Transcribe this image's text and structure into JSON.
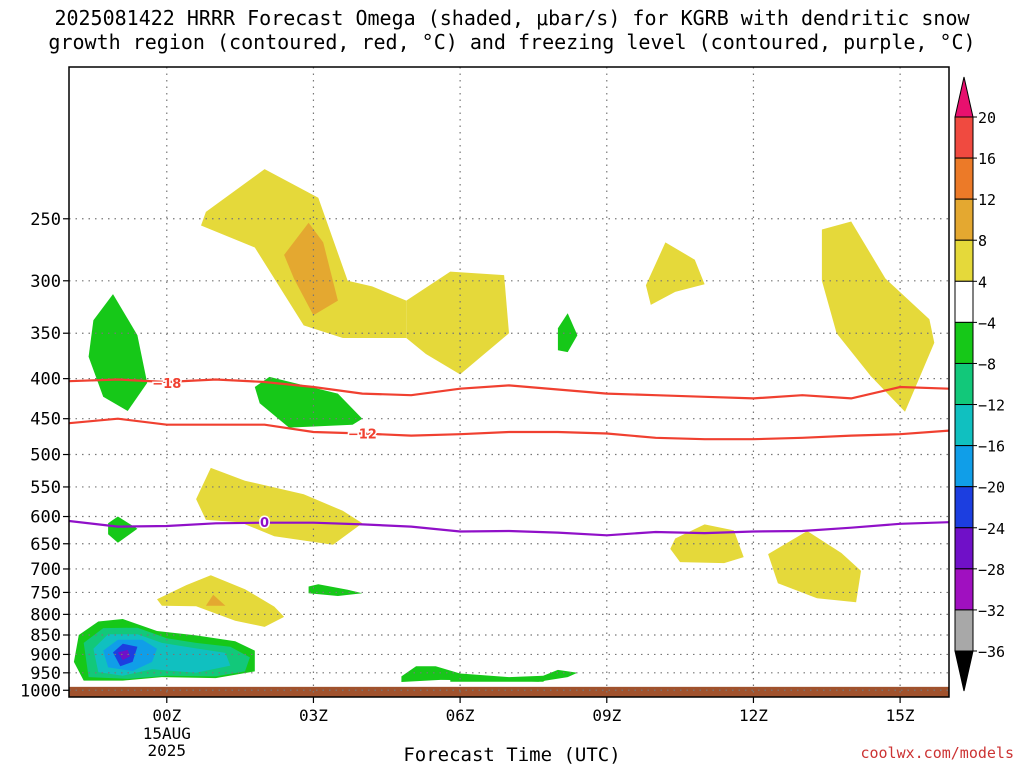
{
  "title": "2025081422 HRRR Forecast Omega (shaded, μbar/s) for KGRB with dendritic snow\ngrowth region (contoured, red, °C) and freezing level (contoured, purple, °C)",
  "credit": "coolwx.com/models",
  "colors": {
    "grid": "#777777",
    "frame": "#000000",
    "red_contour": "#f04030",
    "purple_contour": "#9010c8",
    "ground": "#a0522d"
  },
  "chart_data": {
    "type": "contour",
    "title": "2025081422 HRRR Forecast Omega (shaded, μbar/s) for KGRB with dendritic snow growth region (contoured, red, °C) and freezing level (contoured, purple, °C)",
    "xlabel": "Forecast Time (UTC)",
    "ylabel": "",
    "x_range_hours": [
      -2,
      16
    ],
    "y_range_hpa": [
      1020,
      160
    ],
    "x_ticks": [
      {
        "hour": 0,
        "label": "00Z",
        "sub": [
          "15AUG",
          "2025"
        ]
      },
      {
        "hour": 3,
        "label": "03Z",
        "sub": []
      },
      {
        "hour": 6,
        "label": "06Z",
        "sub": []
      },
      {
        "hour": 9,
        "label": "09Z",
        "sub": []
      },
      {
        "hour": 12,
        "label": "12Z",
        "sub": []
      },
      {
        "hour": 15,
        "label": "15Z",
        "sub": []
      }
    ],
    "y_ticks": [
      250,
      300,
      350,
      400,
      450,
      500,
      550,
      600,
      650,
      700,
      750,
      800,
      850,
      900,
      950,
      1000
    ],
    "grid": true,
    "colorbar": {
      "labels": [
        "20",
        "16",
        "12",
        "8",
        "4",
        "−4",
        "−8",
        "−12",
        "−16",
        "−20",
        "−24",
        "−28",
        "−32",
        "−36"
      ],
      "colors": [
        "#e8106e",
        "#f04a40",
        "#ec7a28",
        "#e4a830",
        "#e5d93a",
        "#ffffff",
        "#16c818",
        "#12c87a",
        "#10c0c0",
        "#109ee8",
        "#1c3ee0",
        "#7010c8",
        "#a010c0",
        "#a8a8a8",
        "#000000"
      ]
    },
    "contour_lines": [
      {
        "name": "-18",
        "color": "#f04030",
        "label": "−18",
        "label_at": [
          0,
          405
        ],
        "points": [
          [
            -2,
            403
          ],
          [
            -1,
            401
          ],
          [
            0,
            404
          ],
          [
            1,
            401
          ],
          [
            2,
            404
          ],
          [
            3,
            410
          ],
          [
            4,
            418
          ],
          [
            5,
            420
          ],
          [
            6,
            412
          ],
          [
            7,
            408
          ],
          [
            8,
            413
          ],
          [
            9,
            418
          ],
          [
            10,
            420
          ],
          [
            11,
            422
          ],
          [
            12,
            424
          ],
          [
            13,
            420
          ],
          [
            14,
            424
          ],
          [
            15,
            410
          ],
          [
            16,
            412
          ]
        ]
      },
      {
        "name": "-12",
        "color": "#f04030",
        "label": "−12",
        "label_at": [
          4,
          470
        ],
        "points": [
          [
            -2,
            456
          ],
          [
            -1,
            450
          ],
          [
            0,
            458
          ],
          [
            1,
            458
          ],
          [
            2,
            458
          ],
          [
            3,
            468
          ],
          [
            4,
            470
          ],
          [
            5,
            473
          ],
          [
            6,
            471
          ],
          [
            7,
            468
          ],
          [
            8,
            468
          ],
          [
            9,
            470
          ],
          [
            10,
            476
          ],
          [
            11,
            478
          ],
          [
            12,
            478
          ],
          [
            13,
            476
          ],
          [
            14,
            473
          ],
          [
            15,
            471
          ],
          [
            16,
            466
          ]
        ]
      },
      {
        "name": "0",
        "color": "#9010c8",
        "label": "0",
        "label_at": [
          2,
          610
        ],
        "points": [
          [
            -2,
            608
          ],
          [
            -1,
            618
          ],
          [
            0,
            617
          ],
          [
            1,
            612
          ],
          [
            2,
            611
          ],
          [
            3,
            611
          ],
          [
            4,
            614
          ],
          [
            5,
            618
          ],
          [
            6,
            627
          ],
          [
            7,
            626
          ],
          [
            8,
            629
          ],
          [
            9,
            634
          ],
          [
            10,
            628
          ],
          [
            11,
            630
          ],
          [
            12,
            627
          ],
          [
            13,
            626
          ],
          [
            14,
            620
          ],
          [
            15,
            613
          ],
          [
            16,
            610
          ]
        ]
      }
    ],
    "omega_regions": [
      {
        "value": 4,
        "color": "#e5d93a",
        "points": [
          [
            0.8,
            245
          ],
          [
            2,
            216
          ],
          [
            3.1,
            235
          ],
          [
            3.7,
            300
          ],
          [
            4.2,
            305
          ],
          [
            4.9,
            318
          ],
          [
            4.9,
            355
          ],
          [
            3.6,
            355
          ],
          [
            2.8,
            342
          ],
          [
            1.8,
            272
          ],
          [
            0.7,
            255
          ]
        ]
      },
      {
        "value": 4,
        "color": "#e5d93a",
        "points": [
          [
            4.9,
            318
          ],
          [
            5.8,
            292
          ],
          [
            6.9,
            295
          ],
          [
            7,
            350
          ],
          [
            6,
            395
          ],
          [
            5.3,
            372
          ],
          [
            4.9,
            355
          ]
        ]
      },
      {
        "value": 8,
        "color": "#e4a830",
        "points": [
          [
            2.4,
            278
          ],
          [
            2.9,
            253
          ],
          [
            3.2,
            268
          ],
          [
            3.5,
            318
          ],
          [
            3,
            332
          ],
          [
            2.6,
            298
          ]
        ]
      },
      {
        "value": 4,
        "color": "#e5d93a",
        "points": [
          [
            9.8,
            304
          ],
          [
            10.2,
            268
          ],
          [
            10.8,
            282
          ],
          [
            11,
            303
          ],
          [
            10.4,
            310
          ],
          [
            9.9,
            322
          ]
        ]
      },
      {
        "value": 4,
        "color": "#e5d93a",
        "points": [
          [
            13.4,
            258
          ],
          [
            14,
            252
          ],
          [
            14.7,
            298
          ],
          [
            15.6,
            336
          ],
          [
            15.7,
            360
          ],
          [
            15.1,
            441
          ],
          [
            14.4,
            397
          ],
          [
            13.7,
            350
          ],
          [
            13.4,
            300
          ]
        ]
      },
      {
        "value": 4,
        "color": "#e5d93a",
        "points": [
          [
            0.6,
            570
          ],
          [
            0.9,
            520
          ],
          [
            1.6,
            540
          ],
          [
            2.8,
            562
          ],
          [
            3.6,
            590
          ],
          [
            4,
            612
          ],
          [
            3.4,
            652
          ],
          [
            2.2,
            636
          ],
          [
            1.5,
            610
          ],
          [
            0.8,
            606
          ]
        ]
      },
      {
        "value": 4,
        "color": "#e5d93a",
        "points": [
          [
            10.4,
            640
          ],
          [
            11,
            614
          ],
          [
            11.6,
            625
          ],
          [
            11.8,
            676
          ],
          [
            11.4,
            688
          ],
          [
            10.5,
            686
          ],
          [
            10.3,
            660
          ]
        ]
      },
      {
        "value": 4,
        "color": "#e5d93a",
        "points": [
          [
            12.3,
            670
          ],
          [
            13.1,
            626
          ],
          [
            13.8,
            668
          ],
          [
            14.2,
            704
          ],
          [
            14.1,
            772
          ],
          [
            13.3,
            763
          ],
          [
            12.5,
            730
          ]
        ]
      },
      {
        "value": 4,
        "color": "#e5d93a",
        "points": [
          [
            -0.2,
            765
          ],
          [
            0.4,
            734
          ],
          [
            0.9,
            713
          ],
          [
            1.6,
            743
          ],
          [
            2.2,
            782
          ],
          [
            2.4,
            806
          ],
          [
            2,
            830
          ],
          [
            1.4,
            815
          ],
          [
            0.6,
            781
          ],
          [
            -0.1,
            780
          ]
        ]
      },
      {
        "value": 8,
        "color": "#e4a830",
        "points": [
          [
            0.8,
            780
          ],
          [
            0.95,
            755
          ],
          [
            1.2,
            780
          ]
        ]
      },
      {
        "value": -4,
        "color": "#16c818",
        "points": [
          [
            -1.5,
            337
          ],
          [
            -1.1,
            312
          ],
          [
            -0.6,
            352
          ],
          [
            -0.4,
            405
          ],
          [
            -0.8,
            440
          ],
          [
            -1.3,
            422
          ],
          [
            -1.6,
            375
          ]
        ]
      },
      {
        "value": -4,
        "color": "#16c818",
        "points": [
          [
            1.8,
            410
          ],
          [
            2.1,
            398
          ],
          [
            3.5,
            418
          ],
          [
            4,
            450
          ],
          [
            3.8,
            458
          ],
          [
            2.5,
            462
          ],
          [
            1.9,
            430
          ]
        ]
      },
      {
        "value": -4,
        "color": "#16c818",
        "points": [
          [
            8,
            345
          ],
          [
            8.2,
            330
          ],
          [
            8.4,
            352
          ],
          [
            8.2,
            370
          ],
          [
            8,
            368
          ]
        ]
      },
      {
        "value": -4,
        "color": "#16c818",
        "points": [
          [
            -1.2,
            612
          ],
          [
            -1,
            600
          ],
          [
            -0.6,
            622
          ],
          [
            -1,
            648
          ],
          [
            -1.2,
            632
          ]
        ]
      },
      {
        "value": -4,
        "color": "#16c818",
        "points": [
          [
            2.9,
            737
          ],
          [
            3.1,
            732
          ],
          [
            3.7,
            744
          ],
          [
            4,
            752
          ],
          [
            3.5,
            758
          ],
          [
            2.9,
            752
          ]
        ]
      },
      {
        "value": -4,
        "color": "#16c818",
        "points": [
          [
            -1.8,
            850
          ],
          [
            -1.4,
            817
          ],
          [
            -0.9,
            811
          ],
          [
            -0.2,
            840
          ],
          [
            0.6,
            851
          ],
          [
            1.4,
            866
          ],
          [
            1.8,
            890
          ],
          [
            1.8,
            946
          ],
          [
            1,
            965
          ],
          [
            -0.1,
            962
          ],
          [
            -0.9,
            972
          ],
          [
            -1.7,
            972
          ],
          [
            -1.9,
            920
          ]
        ]
      },
      {
        "value": -8,
        "color": "#12c87a",
        "points": [
          [
            -1.7,
            870
          ],
          [
            -1.3,
            833
          ],
          [
            -0.6,
            832
          ],
          [
            0,
            858
          ],
          [
            0.6,
            870
          ],
          [
            1.3,
            880
          ],
          [
            1.7,
            908
          ],
          [
            1.6,
            946
          ],
          [
            1,
            960
          ],
          [
            0,
            958
          ],
          [
            -0.8,
            967
          ],
          [
            -1.6,
            962
          ]
        ]
      },
      {
        "value": -12,
        "color": "#10c0c0",
        "points": [
          [
            -1.5,
            885
          ],
          [
            -1.2,
            848
          ],
          [
            -0.6,
            848
          ],
          [
            -0.1,
            870
          ],
          [
            0.5,
            882
          ],
          [
            1.2,
            896
          ],
          [
            1.3,
            930
          ],
          [
            0.6,
            950
          ],
          [
            -0.3,
            940
          ],
          [
            -0.9,
            958
          ],
          [
            -1.4,
            948
          ]
        ]
      },
      {
        "value": -16,
        "color": "#109ee8",
        "points": [
          [
            -1.3,
            890
          ],
          [
            -1,
            862
          ],
          [
            -0.5,
            862
          ],
          [
            -0.2,
            885
          ],
          [
            -0.3,
            920
          ],
          [
            -0.7,
            945
          ],
          [
            -1.2,
            935
          ]
        ]
      },
      {
        "value": -20,
        "color": "#1c3ee0",
        "points": [
          [
            -1.1,
            895
          ],
          [
            -0.9,
            872
          ],
          [
            -0.6,
            880
          ],
          [
            -0.7,
            920
          ],
          [
            -0.95,
            932
          ]
        ]
      },
      {
        "value": -24,
        "color": "#7010c8",
        "points": [
          [
            -1,
            895
          ],
          [
            -0.8,
            888
          ],
          [
            -0.75,
            905
          ],
          [
            -0.9,
            915
          ]
        ]
      },
      {
        "value": -4,
        "color": "#16c818",
        "points": [
          [
            4.8,
            960
          ],
          [
            5.1,
            932
          ],
          [
            5.5,
            932
          ],
          [
            6,
            952
          ],
          [
            7,
            962
          ],
          [
            7.7,
            958
          ],
          [
            8,
            942
          ],
          [
            8.4,
            950
          ],
          [
            8.2,
            962
          ],
          [
            7.6,
            975
          ],
          [
            7,
            972
          ],
          [
            5.6,
            970
          ],
          [
            4.8,
            976
          ]
        ]
      },
      {
        "value": -4,
        "color": "#16c818",
        "points": [
          [
            5.8,
            968
          ],
          [
            7.8,
            964
          ],
          [
            7.7,
            975
          ],
          [
            5.8,
            975
          ]
        ]
      }
    ]
  }
}
